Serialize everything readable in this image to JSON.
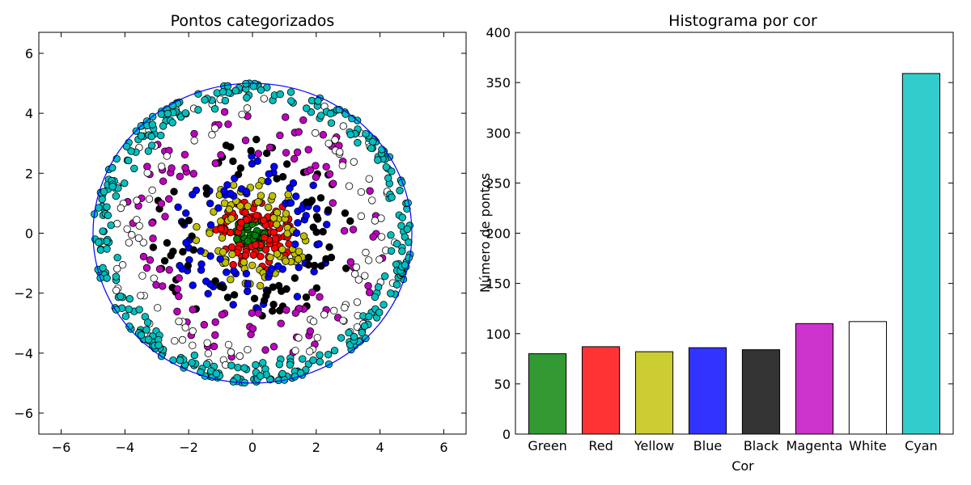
{
  "chart_data": [
    {
      "type": "scatter",
      "title": "Pontos categorizados",
      "xlabel": "",
      "ylabel": "",
      "xlim": [
        -6.7,
        6.7
      ],
      "ylim": [
        -6.7,
        6.7
      ],
      "xticks": [
        -6,
        -4,
        -2,
        0,
        2,
        4,
        6
      ],
      "yticks": [
        6,
        4,
        2,
        0,
        -2,
        -4,
        -6
      ],
      "xtick_labels": [
        "−6",
        "−4",
        "−2",
        "0",
        "2",
        "4",
        "6"
      ],
      "ytick_labels": [
        "6",
        "4",
        "2",
        "0",
        "−2",
        "−4",
        "−6"
      ],
      "boundary_circle": {
        "center": [
          0,
          0
        ],
        "radius": 5,
        "color": "#0000ff"
      },
      "series": [
        {
          "name": "Green",
          "color": "#008000",
          "count": 80,
          "r_range": [
            0,
            0.7
          ]
        },
        {
          "name": "Red",
          "color": "#ff0000",
          "count": 87,
          "r_range": [
            0.7,
            1.4
          ]
        },
        {
          "name": "Yellow",
          "color": "#bfbf00",
          "count": 82,
          "r_range": [
            1.4,
            2.1
          ]
        },
        {
          "name": "Blue",
          "color": "#0000ff",
          "count": 86,
          "r_range": [
            2.1,
            2.8
          ]
        },
        {
          "name": "Black",
          "color": "#000000",
          "count": 84,
          "r_range": [
            2.8,
            3.5
          ]
        },
        {
          "name": "Magenta",
          "color": "#bf00bf",
          "count": 110,
          "r_range": [
            3.5,
            4.2
          ]
        },
        {
          "name": "White",
          "color": "#ffffff",
          "count": 112,
          "r_range": [
            4.2,
            4.9
          ]
        },
        {
          "name": "Cyan",
          "color": "#00bfbf",
          "count": 359,
          "r_range": [
            4.9,
            5.0
          ]
        }
      ],
      "grid": false
    },
    {
      "type": "bar",
      "title": "Histograma por cor",
      "xlabel": "Cor",
      "ylabel": "Número de pontos",
      "categories": [
        "Green",
        "Red",
        "Yellow",
        "Blue",
        "Black",
        "Magenta",
        "White",
        "Cyan"
      ],
      "values": [
        80,
        87,
        82,
        86,
        84,
        110,
        112,
        359
      ],
      "colors": [
        "#339933",
        "#ff3333",
        "#cccc33",
        "#3333ff",
        "#333333",
        "#cc33cc",
        "#ffffff",
        "#33cccc"
      ],
      "ylim": [
        0,
        400
      ],
      "yticks": [
        0,
        50,
        100,
        150,
        200,
        250,
        300,
        350,
        400
      ],
      "grid": false
    }
  ]
}
